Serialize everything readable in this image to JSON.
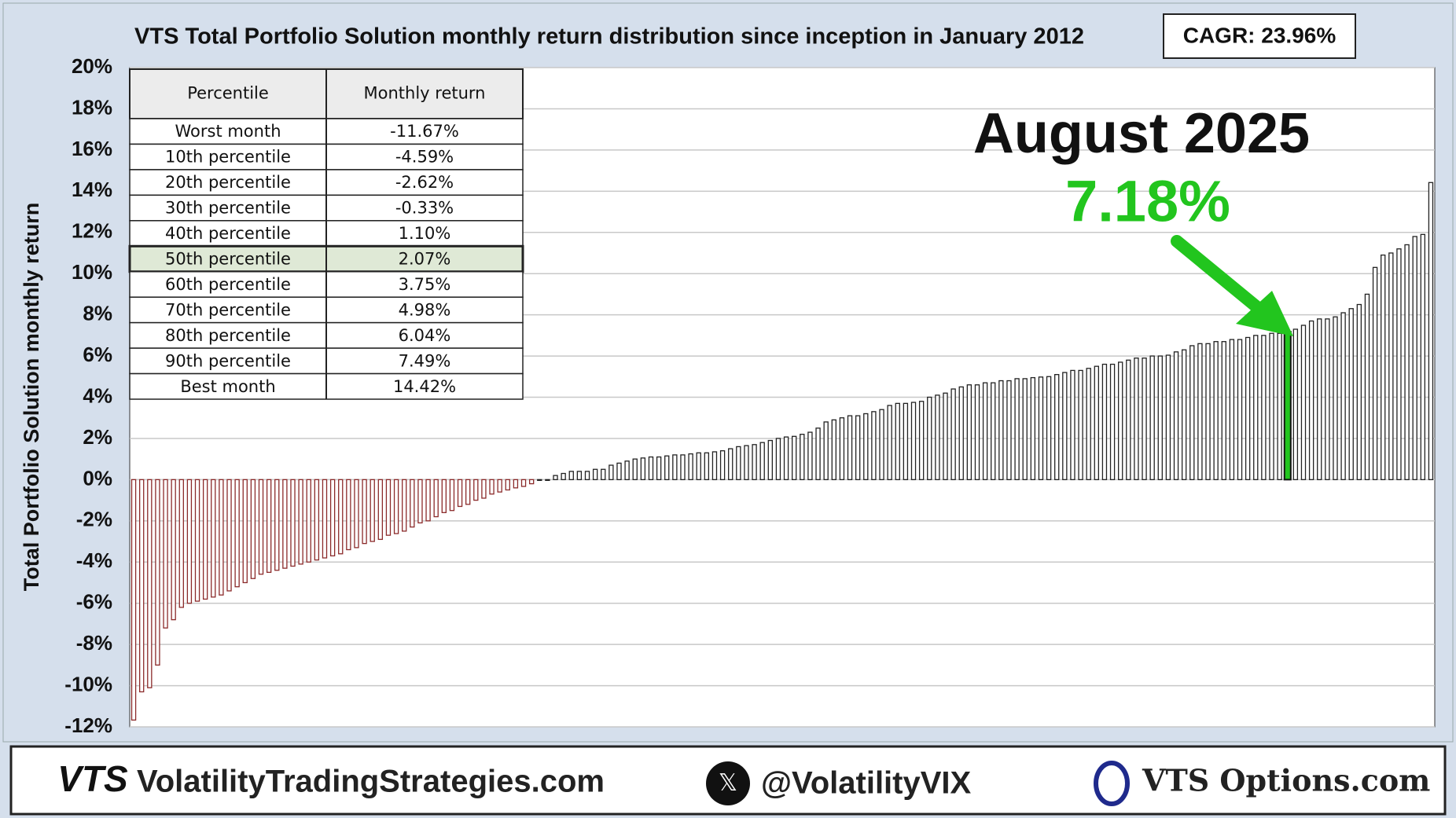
{
  "chart_data": {
    "type": "bar",
    "title": "VTS Total Portfolio Solution monthly return distribution since inception in January 2012",
    "cagr": "CAGR:  23.96%",
    "y_label": "Total Portfolio Solution monthly return",
    "ylim": [
      -12,
      20
    ],
    "yticks": [
      {
        "value": -12,
        "label": "-12%"
      },
      {
        "value": -10,
        "label": "-10%"
      },
      {
        "value": -8,
        "label": "-8%"
      },
      {
        "value": -6,
        "label": "-6%"
      },
      {
        "value": -4,
        "label": "-4%"
      },
      {
        "value": -2,
        "label": "-2%"
      },
      {
        "value": 0,
        "label": "0%"
      },
      {
        "value": 2,
        "label": "2%"
      },
      {
        "value": 4,
        "label": "4%"
      },
      {
        "value": 6,
        "label": "6%"
      },
      {
        "value": 8,
        "label": "8%"
      },
      {
        "value": 10,
        "label": "10%"
      },
      {
        "value": 12,
        "label": "12%"
      },
      {
        "value": 14,
        "label": "14%"
      },
      {
        "value": 16,
        "label": "16%"
      },
      {
        "value": 18,
        "label": "18%"
      },
      {
        "value": 20,
        "label": "20%"
      }
    ],
    "grid": true,
    "positive_color": "#222222",
    "negative_color": "#8b2a2a",
    "highlight_color": "#22c51e",
    "values": [
      -11.67,
      -10.3,
      -10.1,
      -9.0,
      -7.2,
      -6.8,
      -6.2,
      -6.0,
      -5.9,
      -5.8,
      -5.7,
      -5.6,
      -5.4,
      -5.2,
      -5.0,
      -4.8,
      -4.59,
      -4.5,
      -4.4,
      -4.3,
      -4.2,
      -4.1,
      -4.0,
      -3.9,
      -3.8,
      -3.7,
      -3.6,
      -3.4,
      -3.3,
      -3.1,
      -3.0,
      -2.9,
      -2.7,
      -2.62,
      -2.5,
      -2.3,
      -2.1,
      -2.0,
      -1.8,
      -1.6,
      -1.5,
      -1.3,
      -1.2,
      -1.0,
      -0.9,
      -0.7,
      -0.6,
      -0.5,
      -0.4,
      -0.33,
      -0.2,
      0,
      0,
      0.2,
      0.3,
      0.4,
      0.4,
      0.4,
      0.5,
      0.5,
      0.7,
      0.8,
      0.9,
      1.0,
      1.05,
      1.1,
      1.1,
      1.15,
      1.2,
      1.2,
      1.25,
      1.3,
      1.3,
      1.35,
      1.4,
      1.5,
      1.6,
      1.65,
      1.7,
      1.8,
      1.9,
      2.0,
      2.07,
      2.1,
      2.2,
      2.3,
      2.5,
      2.8,
      2.9,
      3.0,
      3.1,
      3.1,
      3.2,
      3.3,
      3.4,
      3.6,
      3.7,
      3.7,
      3.75,
      3.8,
      4.0,
      4.1,
      4.2,
      4.4,
      4.5,
      4.6,
      4.6,
      4.7,
      4.7,
      4.8,
      4.8,
      4.9,
      4.9,
      4.95,
      4.98,
      5.0,
      5.1,
      5.2,
      5.3,
      5.3,
      5.4,
      5.5,
      5.6,
      5.6,
      5.7,
      5.8,
      5.9,
      5.9,
      6.0,
      6.0,
      6.04,
      6.2,
      6.3,
      6.5,
      6.6,
      6.6,
      6.7,
      6.7,
      6.8,
      6.8,
      6.9,
      7.0,
      7.0,
      7.1,
      7.1,
      7.18,
      7.3,
      7.49,
      7.7,
      7.8,
      7.8,
      7.9,
      8.1,
      8.3,
      8.5,
      9.0,
      10.3,
      10.9,
      11.0,
      11.2,
      11.4,
      11.8,
      11.9,
      14.42
    ],
    "annotation": {
      "label": "August 2025",
      "value": 7.18,
      "value_label": "7.18%"
    },
    "table": {
      "header": [
        "Percentile",
        "Monthly return"
      ],
      "highlight_row": 5,
      "rows": [
        [
          "Worst month",
          "-11.67%"
        ],
        [
          "10th percentile",
          "-4.59%"
        ],
        [
          "20th percentile",
          "-2.62%"
        ],
        [
          "30th percentile",
          "-0.33%"
        ],
        [
          "40th percentile",
          "1.10%"
        ],
        [
          "50th percentile",
          "2.07%"
        ],
        [
          "60th percentile",
          "3.75%"
        ],
        [
          "70th percentile",
          "4.98%"
        ],
        [
          "80th percentile",
          "6.04%"
        ],
        [
          "90th percentile",
          "7.49%"
        ],
        [
          "Best month",
          "14.42%"
        ]
      ]
    }
  },
  "footer": {
    "logo": "VTS",
    "site": "VolatilityTradingStrategies.com",
    "twitter": "@VolatilityVIX",
    "options": "VTS Options.com"
  }
}
